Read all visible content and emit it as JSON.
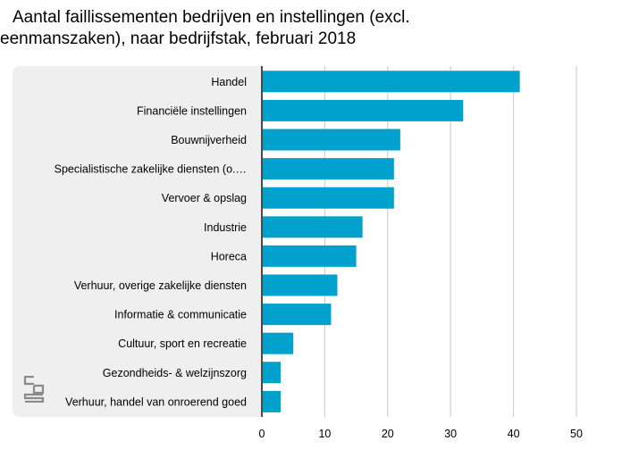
{
  "title": {
    "line1": "Aantal faillissementen bedrijven en instellingen (excl.",
    "line2": "eenmanszaken), naar bedrijfstak, februari 2018"
  },
  "logo": {
    "icon": "cbs-logo-icon",
    "color": "#8a8a8a"
  },
  "colors": {
    "bar": "#00a1cd",
    "panel": "#efefef",
    "grid": "#c8c8c8",
    "axis": "#4a4a4a"
  },
  "chart_data": {
    "type": "bar",
    "orientation": "horizontal",
    "categories": [
      "Handel",
      "Financiële instellingen",
      "Bouwnijverheid",
      "Specialistische zakelijke diensten (o.…",
      "Vervoer & opslag",
      "Industrie",
      "Horeca",
      "Verhuur, overige zakelijke diensten",
      "Informatie & communicatie",
      "Cultuur, sport en recreatie",
      "Gezondheids- & welzijnszorg",
      "Verhuur, handel van onroerend goed"
    ],
    "values": [
      41,
      32,
      22,
      21,
      21,
      16,
      15,
      12,
      11,
      5,
      3,
      3
    ],
    "title": "Aantal faillissementen bedrijven en instellingen (excl. eenmanszaken), naar bedrijfstak, februari 2018",
    "xlabel": "",
    "ylabel": "",
    "xlim": [
      0,
      50
    ],
    "xticks": [
      0,
      10,
      20,
      30,
      40,
      50
    ],
    "grid": true
  }
}
